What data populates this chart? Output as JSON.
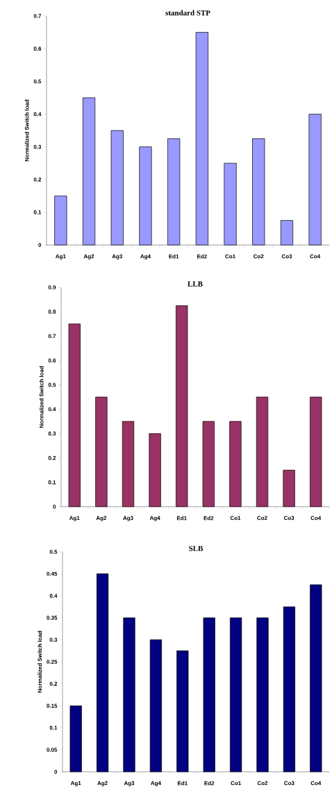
{
  "chart_data": [
    {
      "type": "bar",
      "title": "standard STP",
      "ylabel": "Normalized Switch load",
      "categories": [
        "Ag1",
        "Ag2",
        "Ag3",
        "Ag4",
        "Ed1",
        "Ed2",
        "Co1",
        "Co2",
        "Co3",
        "Co4"
      ],
      "values": [
        0.15,
        0.45,
        0.35,
        0.3,
        0.325,
        0.65,
        0.25,
        0.325,
        0.075,
        0.4
      ],
      "color": "#9999ff",
      "ylim": [
        0,
        0.7
      ],
      "yticks": [
        0,
        0.1,
        0.2,
        0.3,
        0.4,
        0.5,
        0.6,
        0.7
      ]
    },
    {
      "type": "bar",
      "title": "LLB",
      "ylabel": "Normalized Switch load",
      "categories": [
        "Ag1",
        "Ag2",
        "Ag3",
        "Ag4",
        "Ed1",
        "Ed2",
        "Co1",
        "Co2",
        "Co3",
        "Co4"
      ],
      "values": [
        0.75,
        0.45,
        0.35,
        0.3,
        0.825,
        0.35,
        0.35,
        0.45,
        0.15,
        0.45
      ],
      "color": "#993366",
      "ylim": [
        0,
        0.9
      ],
      "yticks": [
        0,
        0.1,
        0.2,
        0.3,
        0.4,
        0.5,
        0.6,
        0.7,
        0.8,
        0.9
      ]
    },
    {
      "type": "bar",
      "title": "SLB",
      "ylabel": "Normalized Switch load",
      "categories": [
        "Ag1",
        "Ag2",
        "Ag3",
        "Ag4",
        "Ed1",
        "Ed2",
        "Co1",
        "Co2",
        "Co3",
        "Co4"
      ],
      "values": [
        0.15,
        0.45,
        0.35,
        0.3,
        0.275,
        0.35,
        0.35,
        0.35,
        0.375,
        0.425
      ],
      "color": "#000080",
      "ylim": [
        0,
        0.5
      ],
      "yticks": [
        0,
        0.05,
        0.1,
        0.15,
        0.2,
        0.25,
        0.3,
        0.35,
        0.4,
        0.45,
        0.5
      ]
    }
  ]
}
